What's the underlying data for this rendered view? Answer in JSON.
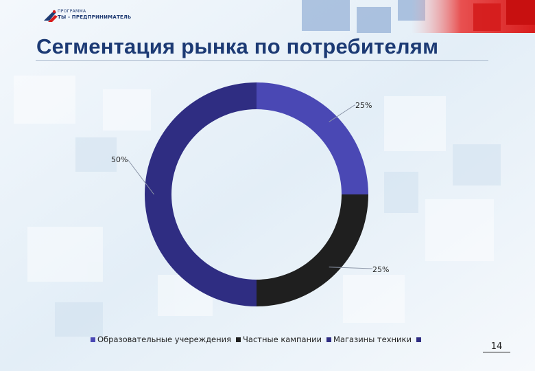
{
  "slide": {
    "logo_small": "ПРОГРАММА",
    "logo_big": "ТЫ - ПРЕДПРИНИМАТЕЛЬ",
    "title": "Сегментация рынка по потребителям",
    "page_number": "14"
  },
  "colors": {
    "title": "#1c3a74",
    "accent_red": "#e03030"
  },
  "chart_data": {
    "type": "pie",
    "donut": true,
    "title": "",
    "series": [
      {
        "name": "Образовательные учереждения",
        "value": 25,
        "label": "25%",
        "color": "#4a48b4"
      },
      {
        "name": "Частные кампании",
        "value": 25,
        "label": "25%",
        "color": "#1f1f1f"
      },
      {
        "name": "Магазины техники",
        "value": 50,
        "label": "50%",
        "color": "#2f2d82"
      },
      {
        "name": "",
        "value": 0,
        "label": "",
        "color": "#2f2d82"
      }
    ],
    "legend_position": "bottom"
  }
}
